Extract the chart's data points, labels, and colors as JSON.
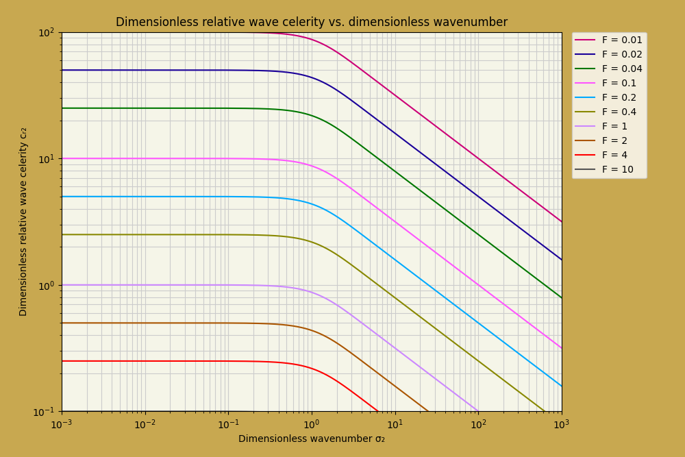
{
  "title": "Dimensionless relative wave celerity vs. dimensionless wavenumber",
  "xlabel": "Dimensionless wavenumber σ₂",
  "ylabel": "Dimensionless relative wave celerity cᵣ₂",
  "xmin": 0.001,
  "xmax": 1000,
  "ymin": 0.1,
  "ymax": 100,
  "froude_numbers": [
    0.01,
    0.02,
    0.04,
    0.1,
    0.2,
    0.4,
    1.0,
    2.0,
    4.0,
    10.0
  ],
  "colors": [
    "#cc0077",
    "#1a0099",
    "#007700",
    "#ff55ff",
    "#00aaff",
    "#888800",
    "#cc88ff",
    "#aa5500",
    "#ff0000",
    "#555555"
  ],
  "legend_labels": [
    "F = 0.01",
    "F = 0.02",
    "F = 0.04",
    "F = 0.1",
    "F = 0.2",
    "F = 0.4",
    "F = 1",
    "F = 2",
    "F = 4",
    "F = 10"
  ],
  "background_color": "#f5f0dc",
  "plot_bg_color": "#f5f5e8",
  "border_color": "#c8a850",
  "grid_color": "#cccccc",
  "title_fontsize": 13,
  "label_fontsize": 11
}
